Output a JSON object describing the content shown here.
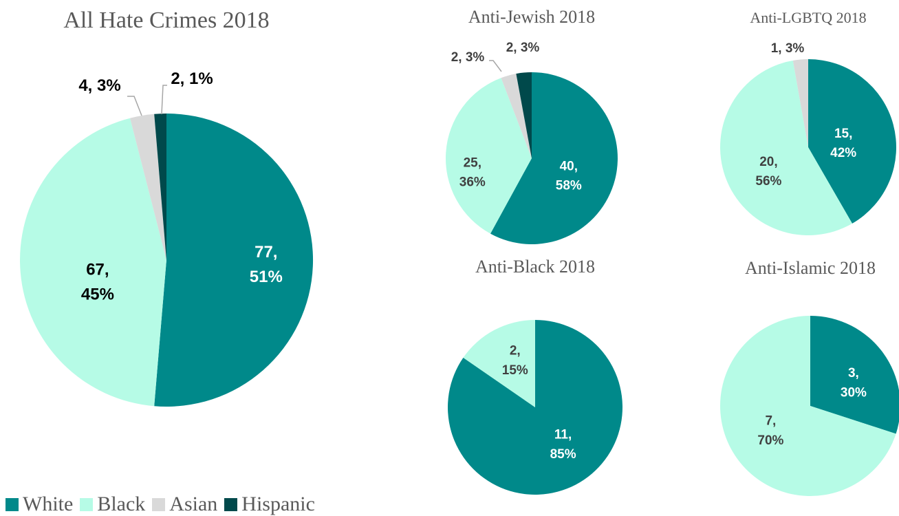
{
  "colors": {
    "White": "#00898A",
    "Black": "#B6FBE6",
    "Asian": "#D9D9D9",
    "Hispanic": "#00494B"
  },
  "legend": [
    {
      "name": "White"
    },
    {
      "name": "Black"
    },
    {
      "name": "Asian"
    },
    {
      "name": "Hispanic"
    }
  ],
  "chart_data": [
    {
      "type": "pie",
      "title": "All Hate Crimes 2018",
      "slices": [
        {
          "category": "White",
          "value": 77,
          "percent": "51%"
        },
        {
          "category": "Black",
          "value": 67,
          "percent": "45%"
        },
        {
          "category": "Asian",
          "value": 4,
          "percent": "3%"
        },
        {
          "category": "Hispanic",
          "value": 2,
          "percent": "1%"
        }
      ]
    },
    {
      "type": "pie",
      "title": "Anti-Jewish 2018",
      "slices": [
        {
          "category": "White",
          "value": 40,
          "percent": "58%"
        },
        {
          "category": "Black",
          "value": 25,
          "percent": "36%"
        },
        {
          "category": "Asian",
          "value": 2,
          "percent": "3%"
        },
        {
          "category": "Hispanic",
          "value": 2,
          "percent": "3%"
        }
      ]
    },
    {
      "type": "pie",
      "title": "Anti-LGBTQ 2018",
      "slices": [
        {
          "category": "White",
          "value": 15,
          "percent": "42%"
        },
        {
          "category": "Black",
          "value": 20,
          "percent": "56%"
        },
        {
          "category": "Asian",
          "value": 1,
          "percent": "3%"
        }
      ]
    },
    {
      "type": "pie",
      "title": "Anti-Black 2018",
      "slices": [
        {
          "category": "White",
          "value": 11,
          "percent": "85%"
        },
        {
          "category": "Black",
          "value": 2,
          "percent": "15%"
        }
      ]
    },
    {
      "type": "pie",
      "title": "Anti-Islamic 2018",
      "slices": [
        {
          "category": "White",
          "value": 3,
          "percent": "30%"
        },
        {
          "category": "Black",
          "value": 7,
          "percent": "70%"
        }
      ]
    }
  ]
}
